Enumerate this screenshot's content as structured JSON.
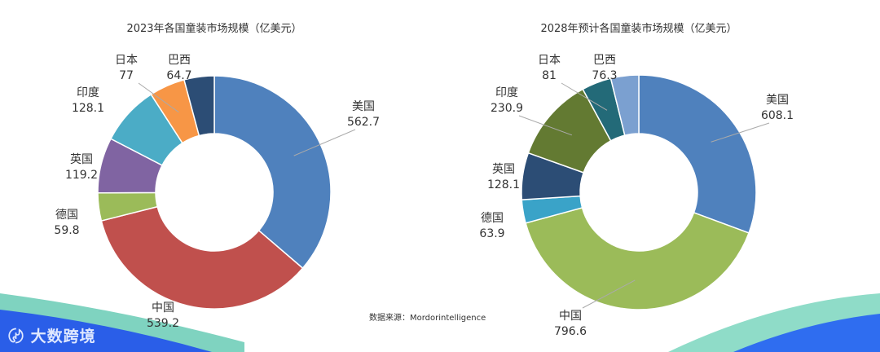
{
  "chart_data": [
    {
      "type": "pie",
      "variant": "donut",
      "title": "2023年各国童装市场规模（亿美元）",
      "categories": [
        "美国",
        "中国",
        "德国",
        "英国",
        "印度",
        "日本",
        "巴西"
      ],
      "values": [
        562.7,
        539.2,
        59.8,
        119.2,
        128.1,
        77,
        64.7
      ],
      "colors": [
        "#4f81bd",
        "#c0504d",
        "#9bbb59",
        "#8064a2",
        "#4bacc6",
        "#f79646",
        "#2c4d75"
      ]
    },
    {
      "type": "pie",
      "variant": "donut",
      "title": "2028年预计各国童装市场规模（亿美元）",
      "categories": [
        "美国",
        "中国",
        "德国",
        "英国",
        "印度",
        "日本",
        "巴西"
      ],
      "values": [
        608.1,
        796.6,
        63.9,
        128.1,
        230.9,
        81,
        76.3
      ],
      "colors": [
        "#4f81bd",
        "#9bbb59",
        "#3aa3c8",
        "#2c4d75",
        "#637a32",
        "#236a78",
        "#7ba0d0"
      ]
    }
  ],
  "source": "数据来源：Mordorintelligence",
  "logo": "大数跨境"
}
